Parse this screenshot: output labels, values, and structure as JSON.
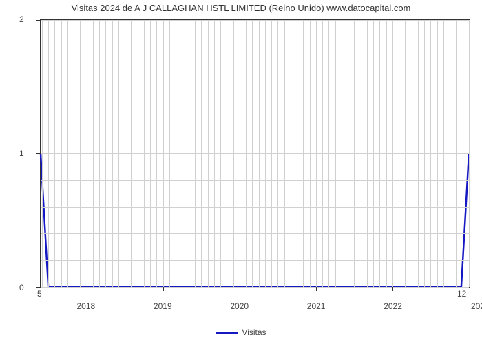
{
  "chart": {
    "type": "line",
    "title": "Visitas 2024 de A J CALLAGHAN HSTL LIMITED (Reino Unido) www.datocapital.com",
    "title_fontsize": 13,
    "background_color": "#ffffff",
    "grid_color": "#d0d0d0",
    "axis_color": "#333333",
    "text_color": "#444444",
    "line_color": "#1618c4",
    "line_width": 2.5,
    "ylim": [
      0,
      2
    ],
    "y_major_ticks": [
      0,
      1,
      2
    ],
    "y_minor_count": 4,
    "xlim": [
      2017.4,
      2023
    ],
    "x_major_ticks": [
      2018,
      2019,
      2020,
      2021,
      2022
    ],
    "x_secondary_left": "5",
    "x_secondary_right": "12",
    "x_secondary_partial": "202",
    "series": [
      {
        "name": "Visitas",
        "points": [
          {
            "x": 2017.4,
            "y": 1.0
          },
          {
            "x": 2017.5,
            "y": 0.0
          },
          {
            "x": 2022.9,
            "y": 0.0
          },
          {
            "x": 2023.0,
            "y": 1.0
          }
        ]
      }
    ],
    "legend_label": "Visitas",
    "label_fontsize": 12
  }
}
